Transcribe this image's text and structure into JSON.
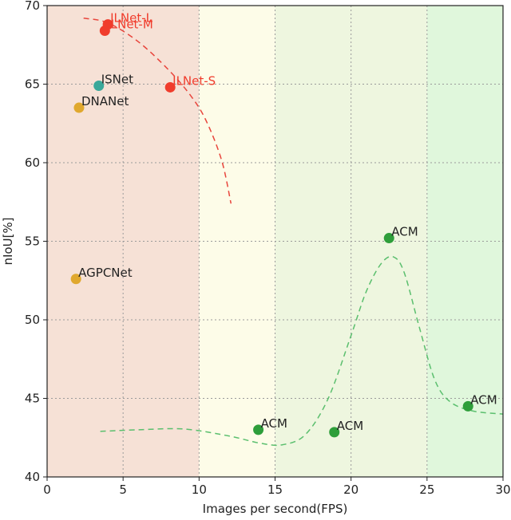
{
  "chart_data": {
    "type": "scatter",
    "xlabel": "Images per second(FPS)",
    "ylabel": "nIoU[%]",
    "xlim": [
      0,
      30
    ],
    "ylim": [
      40,
      70
    ],
    "xticks": [
      0,
      5,
      10,
      15,
      20,
      25,
      30
    ],
    "yticks": [
      40,
      45,
      50,
      55,
      60,
      65,
      70
    ],
    "grid": true,
    "background_bands": [
      {
        "x": [
          0,
          10
        ],
        "color": "#f6e1d6"
      },
      {
        "x": [
          10,
          15
        ],
        "color": "#fdfce8"
      },
      {
        "x": [
          15,
          25
        ],
        "color": "#eef6df"
      },
      {
        "x": [
          25,
          30
        ],
        "color": "#e0f7dc"
      }
    ],
    "points": [
      {
        "label": "ILNet-L",
        "x": 4.0,
        "y": 68.8,
        "color": "#f03c2c",
        "label_color": "#f03c2c"
      },
      {
        "label": "ILNet-M",
        "x": 3.8,
        "y": 68.4,
        "color": "#f03c2c",
        "label_color": "#f03c2c"
      },
      {
        "label": "ILNet-S",
        "x": 8.1,
        "y": 64.8,
        "color": "#f03c2c",
        "label_color": "#f03c2c"
      },
      {
        "label": "ISNet",
        "x": 3.4,
        "y": 64.9,
        "color": "#3aa89a",
        "label_color": "#222222"
      },
      {
        "label": "DNANet",
        "x": 2.1,
        "y": 63.5,
        "color": "#e0a82e",
        "label_color": "#222222"
      },
      {
        "label": "AGPCNet",
        "x": 1.9,
        "y": 52.6,
        "color": "#e0a82e",
        "label_color": "#222222"
      },
      {
        "label": "ACM",
        "x": 22.5,
        "y": 55.2,
        "color": "#2e9e3a",
        "label_color": "#222222"
      },
      {
        "label": "ACM",
        "x": 13.9,
        "y": 43.0,
        "color": "#2e9e3a",
        "label_color": "#222222"
      },
      {
        "label": "ACM",
        "x": 18.9,
        "y": 42.85,
        "color": "#2e9e3a",
        "label_color": "#222222"
      },
      {
        "label": "ACM",
        "x": 27.7,
        "y": 44.5,
        "color": "#2e9e3a",
        "label_color": "#222222"
      }
    ],
    "trend_lines": [
      {
        "color": "#e8453c",
        "style": "dashed",
        "x": [
          2.4,
          4.0,
          6.0,
          8.0,
          9.5,
          10.5,
          11.5,
          12.1
        ],
        "y": [
          69.2,
          68.9,
          67.7,
          65.9,
          64.2,
          62.6,
          60.1,
          57.4
        ]
      },
      {
        "color": "#5bbf6e",
        "style": "dashed",
        "x": [
          3.5,
          6.0,
          9.0,
          12.0,
          14.0,
          15.5,
          17.0,
          18.5,
          20.0,
          21.0,
          22.0,
          22.8,
          23.5,
          24.5,
          25.5,
          26.5,
          28.0,
          30.0
        ],
        "y": [
          42.9,
          43.0,
          43.05,
          42.6,
          42.15,
          42.05,
          42.7,
          45.0,
          49.0,
          51.8,
          53.6,
          54.0,
          53.0,
          49.5,
          46.2,
          44.8,
          44.2,
          44.0
        ]
      }
    ]
  }
}
